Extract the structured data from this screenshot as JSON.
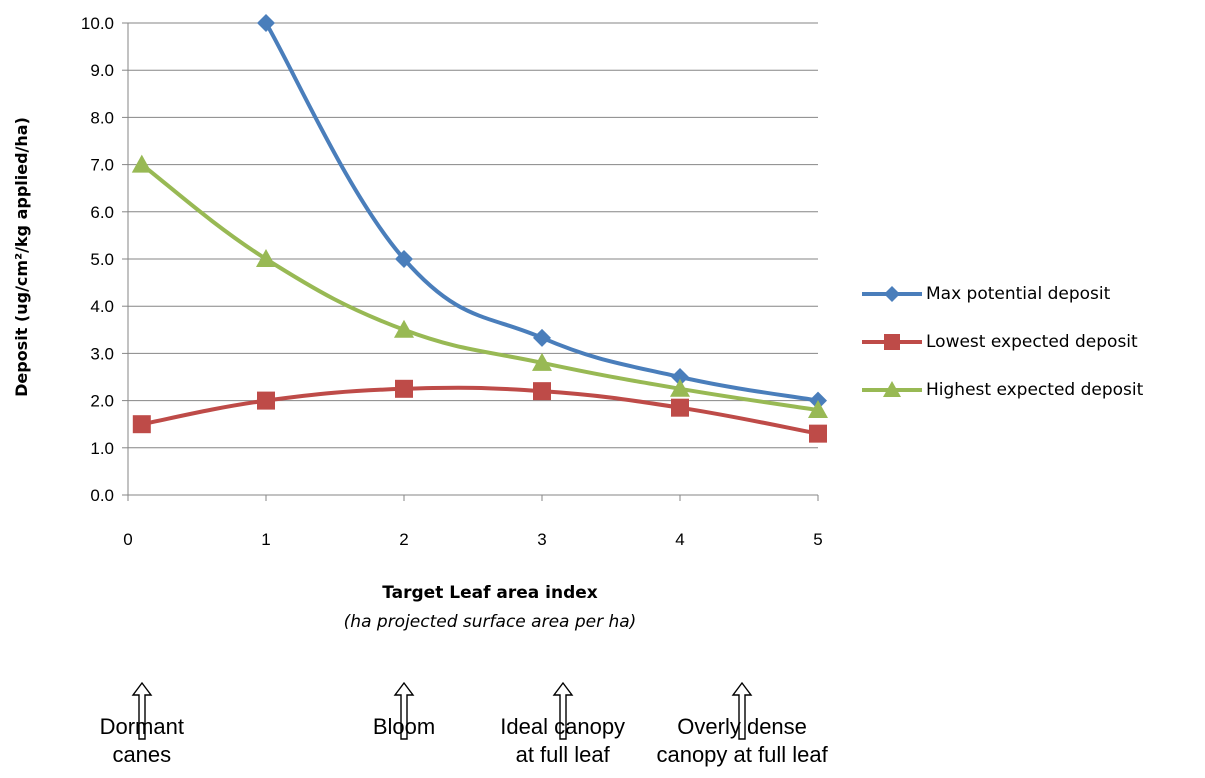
{
  "chart_data": {
    "type": "line",
    "xlabel": "Target Leaf area index",
    "xlabel_sub": "(ha projected surface area per ha)",
    "ylabel": "Deposit (ug/cm²/kg applied/ha)",
    "xlim": [
      0,
      5
    ],
    "ylim": [
      0,
      10
    ],
    "x_ticks": [
      "0",
      "1",
      "2",
      "3",
      "4",
      "5"
    ],
    "y_ticks": [
      "0.0",
      "1.0",
      "2.0",
      "3.0",
      "4.0",
      "5.0",
      "6.0",
      "7.0",
      "8.0",
      "9.0",
      "10.0"
    ],
    "grid": "horizontal",
    "legend_position": "right",
    "series": [
      {
        "name": "Max potential deposit",
        "color": "#4A7EBB",
        "marker": "diamond",
        "x": [
          1,
          2,
          3,
          4,
          5
        ],
        "values": [
          10.0,
          5.0,
          3.33,
          2.5,
          2.0
        ]
      },
      {
        "name": "Lowest expected deposit",
        "color": "#BE4B48",
        "marker": "square",
        "x": [
          0.1,
          1,
          2,
          3,
          4,
          5
        ],
        "values": [
          1.5,
          2.0,
          2.25,
          2.2,
          1.85,
          1.3
        ]
      },
      {
        "name": "Highest expected deposit",
        "color": "#98B954",
        "marker": "triangle",
        "x": [
          0.1,
          1,
          2,
          3,
          4,
          5
        ],
        "values": [
          7.0,
          5.0,
          3.5,
          2.8,
          2.25,
          1.8
        ]
      }
    ]
  },
  "stages": [
    {
      "line1": "Dormant",
      "line2": "canes",
      "x": 0.1
    },
    {
      "line1": "Bloom",
      "line2": "",
      "x": 2.0
    },
    {
      "line1": "Ideal canopy",
      "line2": "at full leaf",
      "x": 3.15
    },
    {
      "line1": "Overly dense",
      "line2": "canopy at full leaf",
      "x": 4.45
    }
  ]
}
